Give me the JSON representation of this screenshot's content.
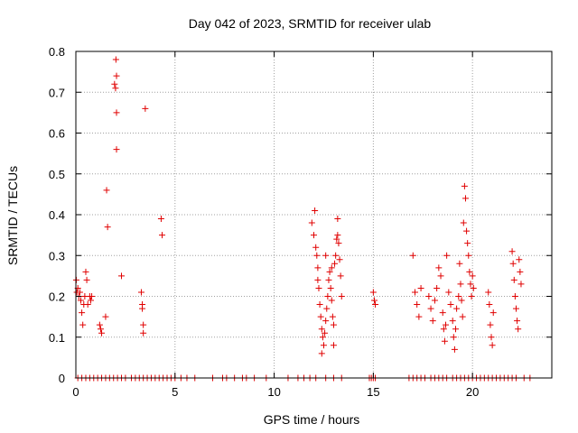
{
  "chart_data": {
    "type": "scatter",
    "title": "Day 042 of 2023, SRMTID for receiver ulab",
    "xlabel": "GPS time / hours",
    "ylabel": "SRMTID / TECUs",
    "xlim": [
      0,
      24
    ],
    "ylim": [
      0,
      0.8
    ],
    "xticks": [
      0,
      5,
      10,
      15,
      20
    ],
    "xtick_labels": [
      "0",
      "5",
      "10",
      "15",
      "20"
    ],
    "yticks": [
      0,
      0.1,
      0.2,
      0.3,
      0.4,
      0.5,
      0.6,
      0.7,
      0.8
    ],
    "ytick_labels": [
      "0",
      "0.1",
      "0.2",
      "0.3",
      "0.4",
      "0.5",
      "0.6",
      "0.7",
      "0.8"
    ],
    "grid": true,
    "marker": "+",
    "color": "#e00000",
    "series": [
      {
        "name": "SRMTID",
        "points": [
          [
            0.02,
            0.24
          ],
          [
            0.05,
            0.21
          ],
          [
            0.1,
            0.22
          ],
          [
            0.15,
            0.2
          ],
          [
            0.2,
            0.21
          ],
          [
            0.25,
            0.19
          ],
          [
            0.3,
            0.16
          ],
          [
            0.35,
            0.13
          ],
          [
            0.4,
            0.18
          ],
          [
            0.45,
            0.2
          ],
          [
            0.5,
            0.26
          ],
          [
            0.55,
            0.24
          ],
          [
            0.6,
            0.18
          ],
          [
            0.7,
            0.2
          ],
          [
            0.75,
            0.19
          ],
          [
            0.8,
            0.2
          ],
          [
            1.2,
            0.13
          ],
          [
            1.25,
            0.12
          ],
          [
            1.3,
            0.11
          ],
          [
            1.5,
            0.15
          ],
          [
            1.55,
            0.46
          ],
          [
            1.6,
            0.37
          ],
          [
            1.95,
            0.72
          ],
          [
            2.0,
            0.71
          ],
          [
            2.02,
            0.78
          ],
          [
            2.05,
            0.74
          ],
          [
            2.05,
            0.65
          ],
          [
            2.05,
            0.56
          ],
          [
            2.3,
            0.25
          ],
          [
            3.3,
            0.21
          ],
          [
            3.35,
            0.18
          ],
          [
            3.35,
            0.17
          ],
          [
            3.4,
            0.13
          ],
          [
            3.4,
            0.11
          ],
          [
            3.5,
            0.66
          ],
          [
            4.3,
            0.39
          ],
          [
            4.35,
            0.35
          ],
          [
            11.9,
            0.38
          ],
          [
            12.0,
            0.35
          ],
          [
            12.05,
            0.41
          ],
          [
            12.1,
            0.32
          ],
          [
            12.15,
            0.3
          ],
          [
            12.2,
            0.27
          ],
          [
            12.25,
            0.22
          ],
          [
            12.3,
            0.18
          ],
          [
            12.35,
            0.15
          ],
          [
            12.4,
            0.12
          ],
          [
            12.45,
            0.1
          ],
          [
            12.5,
            0.08
          ],
          [
            12.55,
            0.11
          ],
          [
            12.6,
            0.14
          ],
          [
            12.65,
            0.17
          ],
          [
            12.7,
            0.2
          ],
          [
            12.75,
            0.24
          ],
          [
            12.8,
            0.26
          ],
          [
            12.85,
            0.22
          ],
          [
            12.9,
            0.19
          ],
          [
            12.95,
            0.15
          ],
          [
            13.0,
            0.13
          ],
          [
            13.05,
            0.28
          ],
          [
            13.1,
            0.3
          ],
          [
            13.15,
            0.34
          ],
          [
            13.2,
            0.35
          ],
          [
            13.25,
            0.33
          ],
          [
            13.3,
            0.29
          ],
          [
            13.35,
            0.25
          ],
          [
            13.4,
            0.2
          ],
          [
            13.2,
            0.39
          ],
          [
            13.0,
            0.08
          ],
          [
            12.4,
            0.06
          ],
          [
            12.2,
            0.24
          ],
          [
            12.6,
            0.3
          ],
          [
            12.9,
            0.27
          ],
          [
            15.0,
            0.21
          ],
          [
            15.05,
            0.19
          ],
          [
            15.1,
            0.18
          ],
          [
            17.0,
            0.3
          ],
          [
            17.1,
            0.21
          ],
          [
            17.2,
            0.18
          ],
          [
            17.3,
            0.15
          ],
          [
            17.4,
            0.22
          ],
          [
            17.8,
            0.2
          ],
          [
            17.9,
            0.17
          ],
          [
            18.0,
            0.14
          ],
          [
            18.1,
            0.19
          ],
          [
            18.2,
            0.22
          ],
          [
            18.3,
            0.27
          ],
          [
            18.4,
            0.25
          ],
          [
            18.5,
            0.16
          ],
          [
            18.55,
            0.12
          ],
          [
            18.6,
            0.09
          ],
          [
            18.65,
            0.13
          ],
          [
            18.7,
            0.3
          ],
          [
            18.8,
            0.21
          ],
          [
            18.9,
            0.18
          ],
          [
            19.0,
            0.14
          ],
          [
            19.05,
            0.1
          ],
          [
            19.1,
            0.07
          ],
          [
            19.15,
            0.12
          ],
          [
            19.2,
            0.17
          ],
          [
            19.3,
            0.2
          ],
          [
            19.35,
            0.28
          ],
          [
            19.4,
            0.23
          ],
          [
            19.45,
            0.19
          ],
          [
            19.5,
            0.15
          ],
          [
            19.55,
            0.38
          ],
          [
            19.6,
            0.47
          ],
          [
            19.65,
            0.44
          ],
          [
            19.7,
            0.36
          ],
          [
            19.75,
            0.33
          ],
          [
            19.8,
            0.3
          ],
          [
            19.85,
            0.26
          ],
          [
            19.9,
            0.23
          ],
          [
            19.95,
            0.2
          ],
          [
            20.0,
            0.25
          ],
          [
            20.05,
            0.22
          ],
          [
            20.8,
            0.21
          ],
          [
            20.85,
            0.18
          ],
          [
            20.9,
            0.13
          ],
          [
            20.95,
            0.1
          ],
          [
            21.0,
            0.08
          ],
          [
            21.05,
            0.16
          ],
          [
            22.0,
            0.31
          ],
          [
            22.05,
            0.28
          ],
          [
            22.1,
            0.24
          ],
          [
            22.15,
            0.2
          ],
          [
            22.2,
            0.17
          ],
          [
            22.25,
            0.14
          ],
          [
            22.3,
            0.12
          ],
          [
            22.35,
            0.29
          ],
          [
            22.4,
            0.26
          ],
          [
            22.45,
            0.23
          ],
          [
            0.1,
            0
          ],
          [
            0.3,
            0
          ],
          [
            0.5,
            0
          ],
          [
            0.7,
            0
          ],
          [
            0.9,
            0
          ],
          [
            1.1,
            0
          ],
          [
            1.3,
            0
          ],
          [
            1.5,
            0
          ],
          [
            1.7,
            0
          ],
          [
            1.9,
            0
          ],
          [
            2.1,
            0
          ],
          [
            2.3,
            0
          ],
          [
            2.5,
            0
          ],
          [
            2.8,
            0
          ],
          [
            3.0,
            0
          ],
          [
            3.2,
            0
          ],
          [
            3.4,
            0
          ],
          [
            3.6,
            0
          ],
          [
            3.8,
            0
          ],
          [
            4.0,
            0
          ],
          [
            4.2,
            0
          ],
          [
            4.4,
            0
          ],
          [
            4.6,
            0
          ],
          [
            4.8,
            0
          ],
          [
            5.0,
            0
          ],
          [
            5.3,
            0
          ],
          [
            5.6,
            0
          ],
          [
            6.0,
            0
          ],
          [
            6.9,
            0
          ],
          [
            7.4,
            0
          ],
          [
            7.6,
            0
          ],
          [
            8.0,
            0
          ],
          [
            8.4,
            0
          ],
          [
            8.6,
            0
          ],
          [
            9.0,
            0
          ],
          [
            9.6,
            0
          ],
          [
            10.7,
            0
          ],
          [
            11.2,
            0
          ],
          [
            11.5,
            0
          ],
          [
            11.8,
            0
          ],
          [
            12.1,
            0
          ],
          [
            12.6,
            0
          ],
          [
            13.0,
            0
          ],
          [
            13.4,
            0
          ],
          [
            14.8,
            0
          ],
          [
            14.9,
            0
          ],
          [
            15.0,
            0
          ],
          [
            15.1,
            0
          ],
          [
            16.8,
            0
          ],
          [
            17.0,
            0
          ],
          [
            17.2,
            0
          ],
          [
            17.4,
            0
          ],
          [
            17.6,
            0
          ],
          [
            17.9,
            0
          ],
          [
            18.1,
            0
          ],
          [
            18.3,
            0
          ],
          [
            18.5,
            0
          ],
          [
            18.7,
            0
          ],
          [
            19.0,
            0
          ],
          [
            19.2,
            0
          ],
          [
            19.4,
            0
          ],
          [
            19.6,
            0
          ],
          [
            19.8,
            0
          ],
          [
            20.0,
            0
          ],
          [
            20.2,
            0
          ],
          [
            20.4,
            0
          ],
          [
            20.6,
            0
          ],
          [
            20.8,
            0
          ],
          [
            21.0,
            0
          ],
          [
            21.2,
            0
          ],
          [
            21.4,
            0
          ],
          [
            21.6,
            0
          ],
          [
            21.8,
            0
          ],
          [
            22.0,
            0
          ],
          [
            22.2,
            0
          ],
          [
            22.6,
            0
          ],
          [
            22.9,
            0
          ]
        ]
      }
    ]
  }
}
